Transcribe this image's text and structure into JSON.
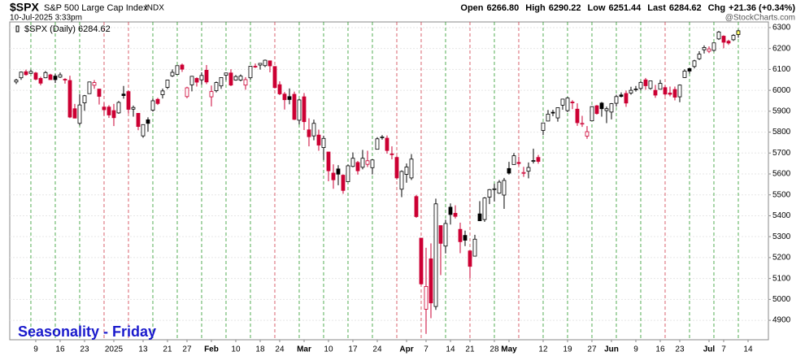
{
  "chart_data": {
    "type": "candlestick",
    "symbol": "$SPX",
    "name": "S&P 500 Large Cap Index",
    "exchange": "INDX",
    "timestamp": "10-Jul-2025 3:33pm",
    "source": "@StockCharts.com",
    "quote": [
      {
        "label": "Open",
        "value": "6266.80"
      },
      {
        "label": "High",
        "value": "6290.22"
      },
      {
        "label": "Low",
        "value": "6251.44"
      },
      {
        "label": "Last",
        "value": "6284.62"
      },
      {
        "label": "Chg",
        "value": "+21.36 (+0.34%)"
      }
    ],
    "legend": "$SPX (Daily) 6284.62",
    "annotation": "Seasonality - Friday",
    "up_color": "#000000",
    "down_color": "#cc0033",
    "last_color": "#ffff66",
    "ylim": [
      4807,
      6327
    ],
    "yticks": [
      4900,
      5000,
      5100,
      5200,
      5300,
      5400,
      5500,
      5600,
      5700,
      5800,
      5900,
      6000,
      6100,
      6200,
      6300
    ],
    "xlim": [
      -1.33,
      154.17
    ],
    "xticks": [
      {
        "value": 4,
        "label": "9"
      },
      {
        "value": 9,
        "label": "16"
      },
      {
        "value": 14,
        "label": "23"
      },
      {
        "value": 20,
        "label": "2025"
      },
      {
        "value": 26,
        "label": "13"
      },
      {
        "value": 31,
        "label": "21"
      },
      {
        "value": 35,
        "label": "27"
      },
      {
        "value": 40,
        "label": "Feb"
      },
      {
        "value": 45,
        "label": "10"
      },
      {
        "value": 50,
        "label": "18"
      },
      {
        "value": 54,
        "label": "24"
      },
      {
        "value": 59,
        "label": "Mar"
      },
      {
        "value": 64,
        "label": "10"
      },
      {
        "value": 69,
        "label": "17"
      },
      {
        "value": 74,
        "label": "24"
      },
      {
        "value": 80,
        "label": "Apr"
      },
      {
        "value": 84,
        "label": "7"
      },
      {
        "value": 89,
        "label": "14"
      },
      {
        "value": 93,
        "label": "21"
      },
      {
        "value": 98,
        "label": "28"
      },
      {
        "value": 101,
        "label": "May"
      },
      {
        "value": 108,
        "label": "12"
      },
      {
        "value": 113,
        "label": "19"
      },
      {
        "value": 118,
        "label": "27"
      },
      {
        "value": 122,
        "label": "Jun"
      },
      {
        "value": 127,
        "label": "9"
      },
      {
        "value": 132,
        "label": "16"
      },
      {
        "value": 136,
        "label": "23"
      },
      {
        "value": 142,
        "label": "Jul"
      },
      {
        "value": 145,
        "label": "7"
      },
      {
        "value": 150,
        "label": "14"
      }
    ],
    "candles": [
      [
        6040,
        6055,
        6030,
        6049
      ],
      [
        6060,
        6090,
        6050,
        6087
      ],
      [
        6089,
        6099,
        6070,
        6075
      ],
      [
        6081,
        6099,
        6079,
        6090
      ],
      [
        6083,
        6088,
        6048,
        6053
      ],
      [
        6057,
        6065,
        6024,
        6034
      ],
      [
        6060,
        6092,
        6058,
        6085
      ],
      [
        6074,
        6079,
        6051,
        6051
      ],
      [
        6068,
        6078,
        6035,
        6051
      ],
      [
        6063,
        6085,
        6059,
        6074
      ],
      [
        6053,
        6058,
        6032,
        6050
      ],
      [
        6047,
        6070,
        5867,
        5872
      ],
      [
        5912,
        5935,
        5866,
        5867
      ],
      [
        5842,
        5982,
        5832,
        5930
      ],
      [
        5940,
        5978,
        5902,
        5974
      ],
      [
        5984,
        6040,
        5983,
        6040
      ],
      [
        6024,
        6049,
        6007,
        6037
      ],
      [
        6006,
        6006,
        5932,
        5971
      ],
      [
        5920,
        5941,
        5879,
        5907
      ],
      [
        5920,
        5929,
        5868,
        5882
      ],
      [
        5903,
        5935,
        5829,
        5869
      ],
      [
        5892,
        5949,
        5888,
        5942
      ],
      [
        5982,
        6021,
        5960,
        5975
      ],
      [
        5994,
        6000,
        5890,
        5909
      ],
      [
        5910,
        5927,
        5874,
        5918
      ],
      [
        5890,
        5891,
        5809,
        5827
      ],
      [
        5782,
        5837,
        5773,
        5836
      ],
      [
        5859,
        5871,
        5802,
        5842
      ],
      [
        5905,
        5960,
        5898,
        5950
      ],
      [
        5957,
        5964,
        5930,
        5937
      ],
      [
        5979,
        6008,
        5961,
        5997
      ],
      [
        6014,
        6051,
        6006,
        6049
      ],
      [
        6069,
        6100,
        6064,
        6086
      ],
      [
        6076,
        6118,
        6074,
        6118
      ],
      [
        6121,
        6128,
        6088,
        6101
      ],
      [
        5970,
        6017,
        5962,
        6012
      ],
      [
        6026,
        6069,
        5995,
        6067
      ],
      [
        6057,
        6062,
        6018,
        6039
      ],
      [
        6050,
        6086,
        6027,
        6071
      ],
      [
        6096,
        6121,
        6030,
        6040
      ],
      [
        5969,
        6023,
        5923,
        5994
      ],
      [
        5998,
        6042,
        5990,
        6037
      ],
      [
        6021,
        6062,
        6007,
        6061
      ],
      [
        6072,
        6084,
        6048,
        6083
      ],
      [
        6083,
        6101,
        6020,
        6025
      ],
      [
        6049,
        6073,
        6046,
        6066
      ],
      [
        6049,
        6076,
        6043,
        6068
      ],
      [
        6025,
        6063,
        6003,
        6051
      ],
      [
        6060,
        6116,
        6051,
        6115
      ],
      [
        6115,
        6128,
        6107,
        6114
      ],
      [
        6121,
        6129,
        6099,
        6129
      ],
      [
        6118,
        6147,
        6111,
        6144
      ],
      [
        6141,
        6142,
        6086,
        6117
      ],
      [
        6114,
        6114,
        6009,
        6013
      ],
      [
        6027,
        6043,
        5977,
        5983
      ],
      [
        5982,
        5992,
        5908,
        5955
      ],
      [
        5970,
        6009,
        5933,
        5956
      ],
      [
        5981,
        5994,
        5858,
        5861
      ],
      [
        5857,
        5959,
        5837,
        5954
      ],
      [
        5969,
        5987,
        5810,
        5850
      ],
      [
        5811,
        5866,
        5732,
        5778
      ],
      [
        5782,
        5860,
        5761,
        5842
      ],
      [
        5786,
        5812,
        5711,
        5738
      ],
      [
        5726,
        5783,
        5667,
        5770
      ],
      [
        5705,
        5705,
        5565,
        5615
      ],
      [
        5604,
        5646,
        5529,
        5572
      ],
      [
        5624,
        5642,
        5546,
        5599
      ],
      [
        5594,
        5598,
        5505,
        5521
      ],
      [
        5563,
        5645,
        5563,
        5639
      ],
      [
        5636,
        5703,
        5632,
        5675
      ],
      [
        5655,
        5662,
        5597,
        5615
      ],
      [
        5632,
        5715,
        5622,
        5675
      ],
      [
        5646,
        5711,
        5633,
        5663
      ],
      [
        5630,
        5670,
        5598,
        5667
      ],
      [
        5718,
        5776,
        5718,
        5768
      ],
      [
        5776,
        5786,
        5764,
        5777
      ],
      [
        5771,
        5784,
        5697,
        5712
      ],
      [
        5696,
        5732,
        5670,
        5693
      ],
      [
        5679,
        5685,
        5573,
        5581
      ],
      [
        5527,
        5617,
        5489,
        5612
      ],
      [
        5598,
        5650,
        5558,
        5633
      ],
      [
        5581,
        5695,
        5571,
        5671
      ],
      [
        5492,
        5500,
        5390,
        5396
      ],
      [
        5293,
        5293,
        5070,
        5074
      ],
      [
        4953,
        5247,
        4835,
        5062
      ],
      [
        5194,
        5268,
        4910,
        4983
      ],
      [
        4966,
        5482,
        4950,
        5457
      ],
      [
        5353,
        5353,
        5116,
        5268
      ],
      [
        5255,
        5381,
        5220,
        5363
      ],
      [
        5441,
        5459,
        5358,
        5406
      ],
      [
        5412,
        5450,
        5387,
        5397
      ],
      [
        5335,
        5367,
        5221,
        5276
      ],
      [
        5306,
        5329,
        5255,
        5283
      ],
      [
        5232,
        5233,
        5102,
        5158
      ],
      [
        5207,
        5309,
        5207,
        5288
      ],
      [
        5409,
        5470,
        5375,
        5376
      ],
      [
        5382,
        5489,
        5371,
        5485
      ],
      [
        5489,
        5528,
        5456,
        5525
      ],
      [
        5529,
        5553,
        5468,
        5529
      ],
      [
        5508,
        5571,
        5505,
        5561
      ],
      [
        5499,
        5581,
        5433,
        5569
      ],
      [
        5626,
        5658,
        5597,
        5604
      ],
      [
        5645,
        5700,
        5645,
        5687
      ],
      [
        5655,
        5683,
        5640,
        5650
      ],
      [
        5605,
        5634,
        5586,
        5607
      ],
      [
        5613,
        5655,
        5579,
        5631
      ],
      [
        5663,
        5721,
        5650,
        5664
      ],
      [
        5679,
        5691,
        5649,
        5660
      ],
      [
        5808,
        5845,
        5786,
        5844
      ],
      [
        5853,
        5906,
        5853,
        5886
      ],
      [
        5895,
        5907,
        5876,
        5892
      ],
      [
        5868,
        5917,
        5850,
        5917
      ],
      [
        5929,
        5958,
        5907,
        5958
      ],
      [
        5903,
        5968,
        5896,
        5963
      ],
      [
        5944,
        5953,
        5910,
        5940
      ],
      [
        5910,
        5938,
        5830,
        5845
      ],
      [
        5841,
        5878,
        5825,
        5842
      ],
      [
        5781,
        5829,
        5768,
        5802
      ],
      [
        5854,
        5924,
        5854,
        5922
      ],
      [
        5926,
        5930,
        5884,
        5889
      ],
      [
        5939,
        5944,
        5874,
        5912
      ],
      [
        5903,
        5922,
        5843,
        5912
      ],
      [
        5896,
        5939,
        5861,
        5936
      ],
      [
        5938,
        5979,
        5922,
        5970
      ],
      [
        5978,
        5990,
        5966,
        5971
      ],
      [
        5985,
        5999,
        5921,
        5939
      ],
      [
        5987,
        6017,
        5979,
        6000
      ],
      [
        6005,
        6021,
        5994,
        6006
      ],
      [
        6009,
        6043,
        6000,
        6038
      ],
      [
        6050,
        6059,
        6003,
        6022
      ],
      [
        6009,
        6045,
        6003,
        6045
      ],
      [
        6000,
        6026,
        5964,
        5977
      ],
      [
        6005,
        6050,
        6005,
        6033
      ],
      [
        6013,
        6024,
        5974,
        5982
      ],
      [
        5987,
        6018,
        5971,
        5981
      ],
      [
        6004,
        6018,
        5952,
        5967
      ],
      [
        5969,
        6028,
        5943,
        6025
      ],
      [
        6061,
        6101,
        6059,
        6092
      ],
      [
        6104,
        6108,
        6080,
        6092
      ],
      [
        6114,
        6146,
        6105,
        6141
      ],
      [
        6151,
        6187,
        6145,
        6173
      ],
      [
        6194,
        6215,
        6176,
        6205
      ],
      [
        6187,
        6210,
        6178,
        6198
      ],
      [
        6191,
        6227,
        6185,
        6227
      ],
      [
        6246,
        6284,
        6241,
        6279
      ],
      [
        6259,
        6263,
        6201,
        6230
      ],
      [
        6235,
        6242,
        6217,
        6226
      ],
      [
        6242,
        6269,
        6236,
        6263
      ],
      [
        6266.8,
        6290.22,
        6251.44,
        6284.62
      ]
    ]
  }
}
